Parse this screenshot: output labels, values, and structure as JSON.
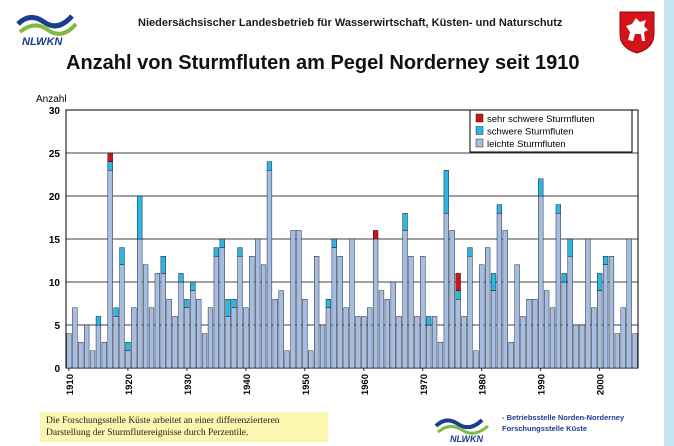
{
  "header": {
    "org_name": "Niedersächsischer Landesbetrieb für Wasserwirtschaft, Küsten- und Naturschutz",
    "logo_text": "NLWKN"
  },
  "footer": {
    "note": "Die Forschungsstelle Küste arbeitet an einer differenzierteren Darstellung der Sturmflutereignisse durch Perzentile.",
    "logo_text": "NLWKN",
    "unit_line1": "- Betriebsstelle Norden-Norderney",
    "unit_line2": "Forschungsstelle Küste"
  },
  "colors": {
    "sehr_schwer": "#c8161d",
    "schwer": "#2eb5e2",
    "leicht": "#a6bde3",
    "bar_border": "#000000",
    "logo_blue": "#1b3d8f",
    "logo_green": "#7dbb42",
    "crest_red": "#d4121a"
  },
  "chart_data": {
    "type": "bar",
    "stacked": true,
    "title": "Anzahl von Sturmfluten am Pegel Norderney seit 1910",
    "ylabel": "Anzahl",
    "xlabel": "",
    "ylim": [
      0,
      30
    ],
    "yticks": [
      0,
      5,
      10,
      15,
      20,
      25,
      30
    ],
    "xticks": [
      1910,
      1920,
      1930,
      1940,
      1950,
      1960,
      1970,
      1980,
      1990,
      2000
    ],
    "grid": "horizontal",
    "legend_position": "top-right",
    "years": [
      1910,
      1911,
      1912,
      1913,
      1914,
      1915,
      1916,
      1917,
      1918,
      1919,
      1920,
      1921,
      1922,
      1923,
      1924,
      1925,
      1926,
      1927,
      1928,
      1929,
      1930,
      1931,
      1932,
      1933,
      1934,
      1935,
      1936,
      1937,
      1938,
      1939,
      1940,
      1941,
      1942,
      1943,
      1944,
      1945,
      1946,
      1947,
      1948,
      1949,
      1950,
      1951,
      1952,
      1953,
      1954,
      1955,
      1956,
      1957,
      1958,
      1959,
      1960,
      1961,
      1962,
      1963,
      1964,
      1965,
      1966,
      1967,
      1968,
      1969,
      1970,
      1971,
      1972,
      1973,
      1974,
      1975,
      1976,
      1977,
      1978,
      1979,
      1980,
      1981,
      1982,
      1983,
      1984,
      1985,
      1986,
      1987,
      1988,
      1989,
      1990,
      1991,
      1992,
      1993,
      1994,
      1995,
      1996,
      1997,
      1998,
      1999,
      2000,
      2001,
      2002,
      2003,
      2004,
      2005,
      2006
    ],
    "series": [
      {
        "name": "leichte Sturmfluten",
        "values": [
          4,
          7,
          3,
          5,
          2,
          5,
          3,
          23,
          6,
          12,
          2,
          7,
          15,
          12,
          7,
          11,
          11,
          8,
          6,
          10,
          7,
          9,
          8,
          4,
          7,
          13,
          14,
          6,
          7,
          13,
          7,
          13,
          15,
          12,
          23,
          8,
          9,
          2,
          16,
          16,
          8,
          2,
          13,
          5,
          7,
          14,
          13,
          7,
          15,
          6,
          6,
          7,
          15,
          9,
          8,
          10,
          6,
          16,
          13,
          6,
          13,
          5,
          6,
          3,
          18,
          16,
          8,
          6,
          13,
          2,
          12,
          14,
          9,
          18,
          16,
          3,
          12,
          6,
          8,
          8,
          20,
          9,
          7,
          18,
          10,
          13,
          5,
          5,
          15,
          7,
          9,
          12,
          13,
          4,
          7,
          15,
          4
        ]
      },
      {
        "name": "schwere Sturmfluten",
        "values": [
          0,
          0,
          0,
          0,
          0,
          1,
          0,
          1,
          1,
          2,
          1,
          0,
          5,
          0,
          0,
          0,
          2,
          0,
          0,
          1,
          1,
          1,
          0,
          0,
          0,
          1,
          1,
          2,
          1,
          1,
          0,
          0,
          0,
          0,
          1,
          0,
          0,
          0,
          0,
          0,
          0,
          0,
          0,
          0,
          1,
          1,
          0,
          0,
          0,
          0,
          0,
          0,
          0,
          0,
          0,
          0,
          0,
          2,
          0,
          0,
          0,
          1,
          0,
          0,
          5,
          0,
          1,
          0,
          1,
          0,
          0,
          0,
          2,
          1,
          0,
          0,
          0,
          0,
          0,
          0,
          2,
          0,
          0,
          1,
          1,
          2,
          0,
          0,
          0,
          0,
          2,
          1,
          0,
          0,
          0,
          0,
          0
        ]
      },
      {
        "name": "sehr schwere Sturmfluten",
        "values": [
          0,
          0,
          0,
          0,
          0,
          0,
          0,
          1,
          0,
          0,
          0,
          0,
          0,
          0,
          0,
          0,
          0,
          0,
          0,
          0,
          0,
          0,
          0,
          0,
          0,
          0,
          0,
          0,
          0,
          0,
          0,
          0,
          0,
          0,
          0,
          0,
          0,
          0,
          0,
          0,
          0,
          0,
          0,
          0,
          0,
          0,
          0,
          0,
          0,
          0,
          0,
          0,
          1,
          0,
          0,
          0,
          0,
          0,
          0,
          0,
          0,
          0,
          0,
          0,
          0,
          0,
          2,
          0,
          0,
          0,
          0,
          0,
          0,
          0,
          0,
          0,
          0,
          0,
          0,
          0,
          0,
          0,
          0,
          0,
          0,
          0,
          0,
          0,
          0,
          0,
          0,
          0,
          0,
          0,
          0,
          0,
          0
        ]
      }
    ]
  }
}
